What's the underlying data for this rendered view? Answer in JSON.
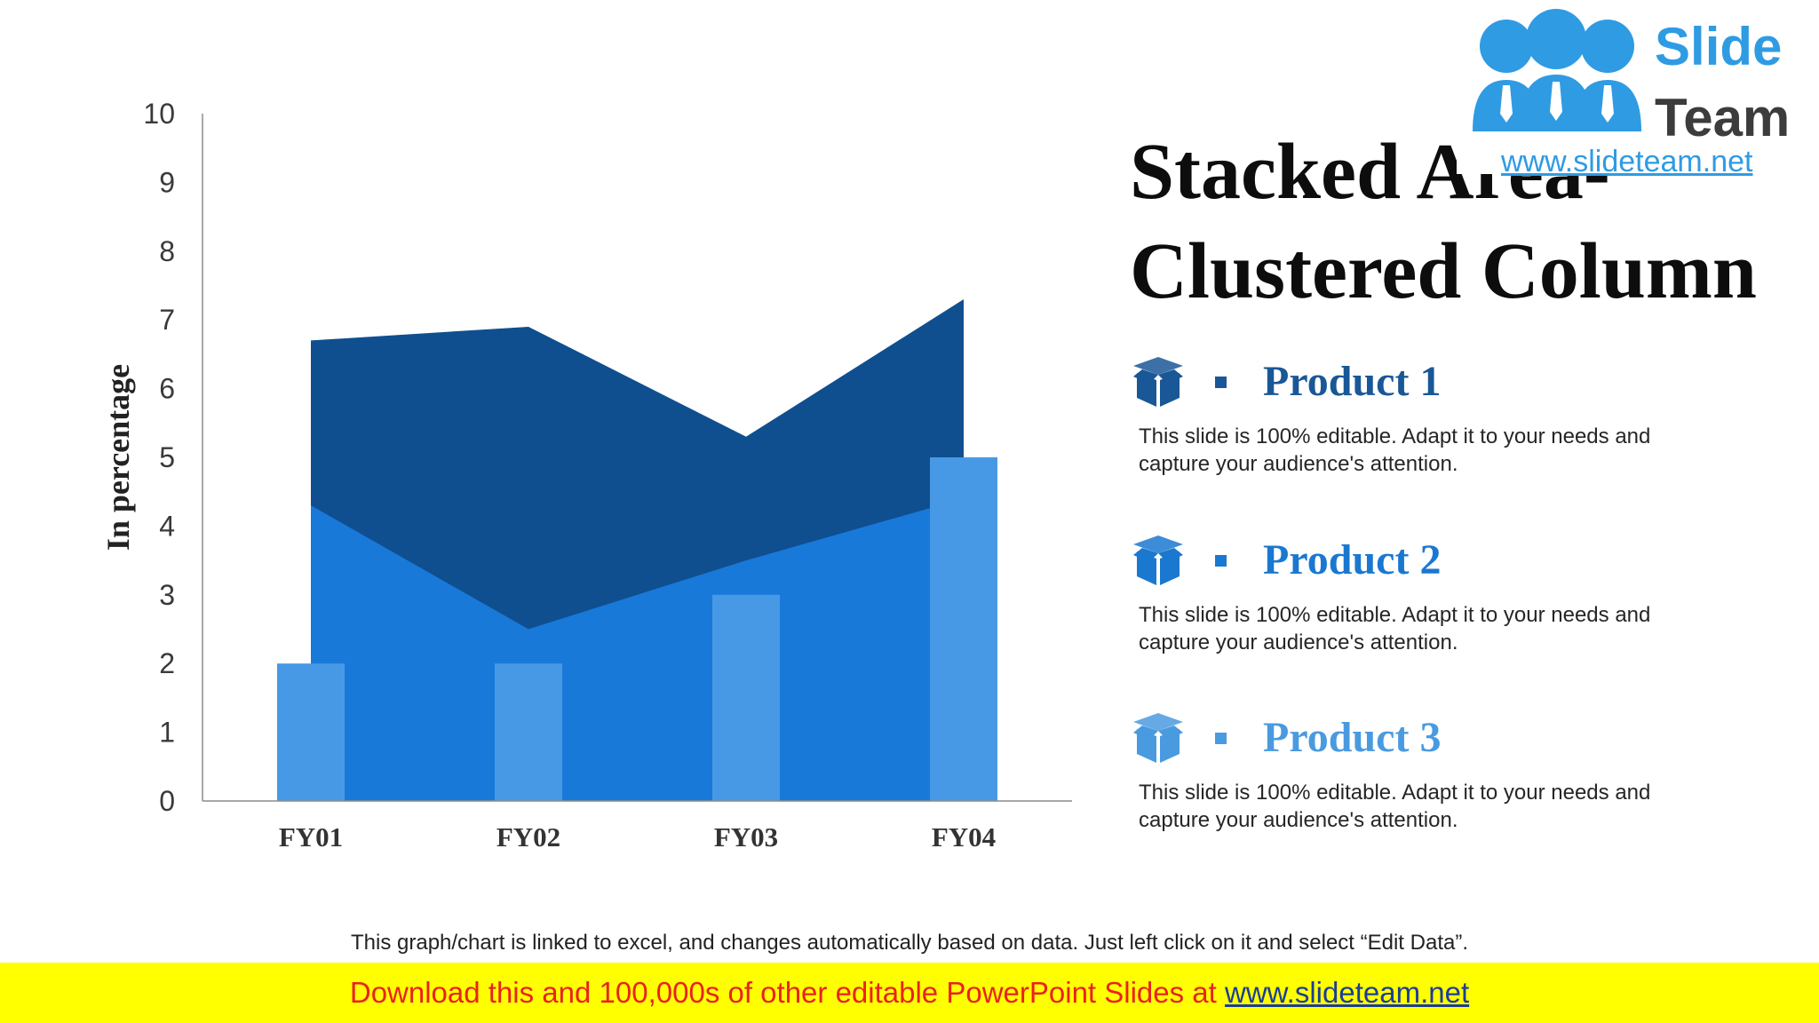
{
  "title": "Stacked Area- Clustered Column",
  "logo": {
    "word1": "Slide",
    "word2": "Team",
    "url": "www.slideteam.net"
  },
  "colors": {
    "area_top": "#0f4f8f",
    "area_bottom": "#1879d9",
    "column": "#4799e6",
    "product1": "#1a5796",
    "product2": "#1a78d0",
    "product3": "#4a9ae0",
    "banner_bg": "#ffff00",
    "banner_text": "#e8231e"
  },
  "products": [
    {
      "name": "Product 1",
      "desc": "This slide is 100% editable. Adapt it to your needs and capture your audience's attention.",
      "icon": "box-icon"
    },
    {
      "name": "Product 2",
      "desc": "This slide is 100% editable. Adapt it to your needs and capture your audience's attention.",
      "icon": "box-icon"
    },
    {
      "name": "Product 3",
      "desc": "This slide is 100% editable. Adapt it to your needs and capture your audience's attention.",
      "icon": "box-icon"
    }
  ],
  "note": "This graph/chart is linked to excel, and changes automatically based on data. Just left click on it and select “Edit Data”.",
  "banner": {
    "text": "Download this and 100,000s of other editable PowerPoint Slides at ",
    "link": "www.slideteam.net"
  },
  "chart_data": {
    "type": "area",
    "categories": [
      "FY01",
      "FY02",
      "FY03",
      "FY04"
    ],
    "ylabel": "In percentage",
    "ylim": [
      0,
      10
    ],
    "yticks": [
      0,
      1,
      2,
      3,
      4,
      5,
      6,
      7,
      8,
      9,
      10
    ],
    "grid": false,
    "series": [
      {
        "kind": "stacked-area",
        "values": [
          4.3,
          2.5,
          3.5,
          4.4
        ]
      },
      {
        "kind": "stacked-area",
        "values": [
          2.4,
          4.4,
          1.8,
          2.9
        ]
      },
      {
        "kind": "column",
        "values": [
          2,
          2,
          3,
          5
        ]
      }
    ]
  }
}
